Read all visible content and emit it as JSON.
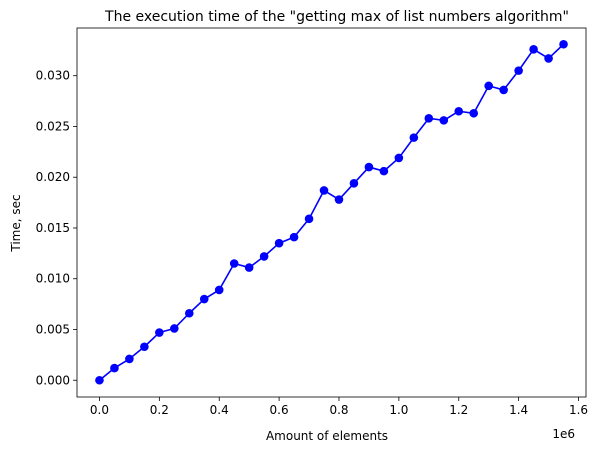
{
  "chart_data": {
    "type": "line",
    "title": "The execution time of the \"getting max of list numbers algorithm\"",
    "xlabel": "Amount of elements",
    "ylabel": "Time, sec",
    "x_offset_label": "1e6",
    "xlim": [
      -75000,
      1625000
    ],
    "ylim": [
      -0.00165,
      0.0347
    ],
    "x_ticks": [
      0,
      0.2,
      0.4,
      0.6,
      0.8,
      1.0,
      1.2,
      1.4,
      1.6
    ],
    "x_tick_labels": [
      "0.0",
      "0.2",
      "0.4",
      "0.6",
      "0.8",
      "1.0",
      "1.2",
      "1.4",
      "1.6"
    ],
    "y_ticks": [
      0,
      0.005,
      0.01,
      0.015,
      0.02,
      0.025,
      0.03
    ],
    "y_tick_labels": [
      "0.000",
      "0.005",
      "0.010",
      "0.015",
      "0.020",
      "0.025",
      "0.030"
    ],
    "grid": false,
    "colors": {
      "line": "#0000ff",
      "marker": "#0000ff"
    },
    "series": [
      {
        "x": [
          0,
          50000,
          100000,
          150000,
          200000,
          250000,
          300000,
          350000,
          400000,
          450000,
          500000,
          550000,
          600000,
          650000,
          700000,
          750000,
          800000,
          850000,
          900000,
          950000,
          1000000,
          1050000,
          1100000,
          1150000,
          1200000,
          1250000,
          1300000,
          1350000,
          1400000,
          1450000,
          1500000,
          1550000
        ],
        "y": [
          0.0,
          0.0012,
          0.0021,
          0.0033,
          0.0047,
          0.0051,
          0.0066,
          0.008,
          0.0089,
          0.0115,
          0.0111,
          0.0122,
          0.0135,
          0.0141,
          0.0159,
          0.0187,
          0.0178,
          0.0194,
          0.021,
          0.0206,
          0.0219,
          0.0239,
          0.0258,
          0.0256,
          0.0265,
          0.0263,
          0.029,
          0.0286,
          0.0305,
          0.0326,
          0.0317,
          0.0331
        ]
      }
    ]
  }
}
